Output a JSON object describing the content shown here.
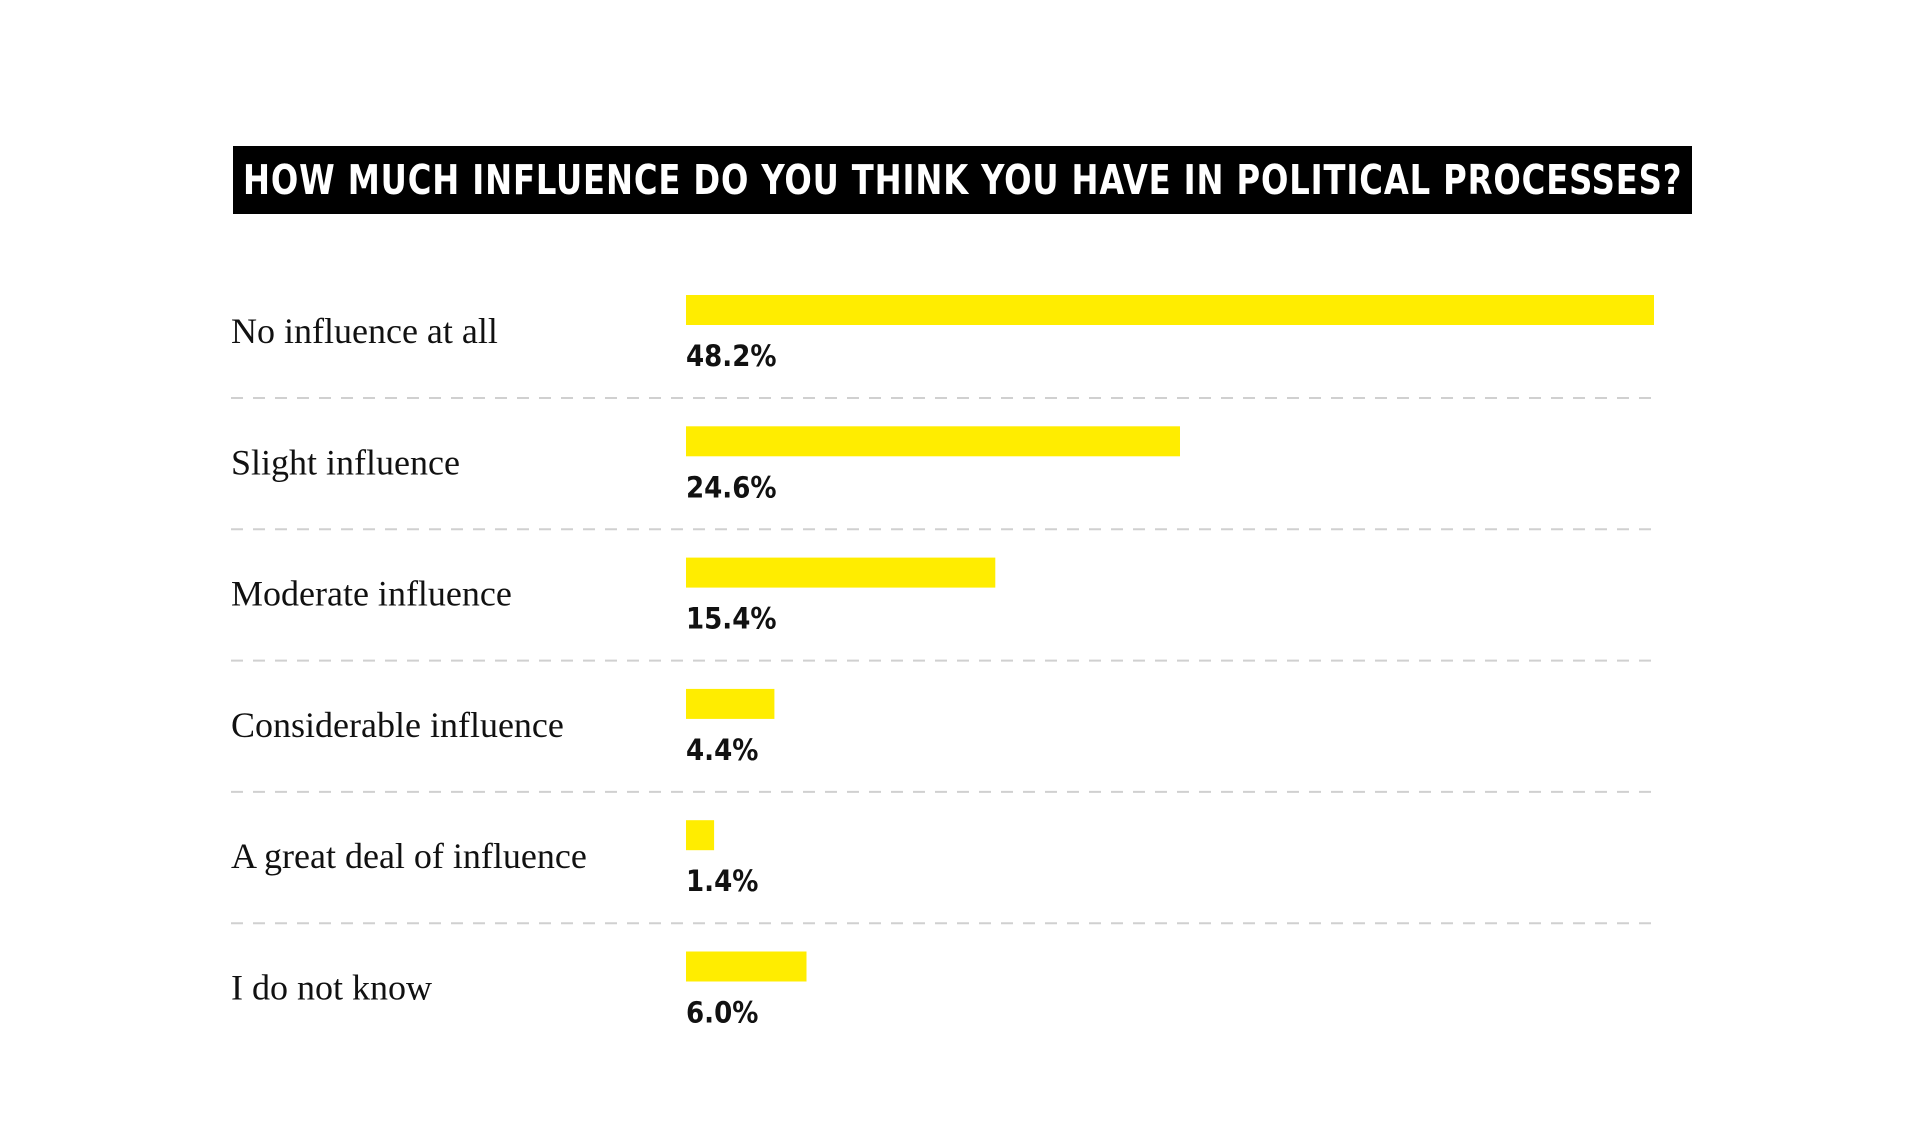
{
  "chart_data": {
    "type": "bar",
    "orientation": "horizontal",
    "title": "HOW MUCH INFLUENCE DO YOU THINK YOU HAVE IN POLITICAL PROCESSES?",
    "categories": [
      "No influence at all",
      "Slight influence",
      "Moderate influence",
      "Considerable influence",
      "A great deal of influence",
      "I do not know"
    ],
    "values": [
      48.2,
      24.6,
      15.4,
      4.4,
      1.4,
      6.0
    ],
    "value_labels": [
      "48.2%",
      "24.6%",
      "15.4%",
      "4.4%",
      "1.4%",
      "6.0%"
    ],
    "unit": "%",
    "xlim": [
      0,
      48.2
    ],
    "grid": false,
    "separators": "dashed",
    "colors": {
      "bar": "#FFED00",
      "title_background": "#000000",
      "title_text": "#FFFFFF",
      "separator": "#D0D0D0"
    }
  }
}
